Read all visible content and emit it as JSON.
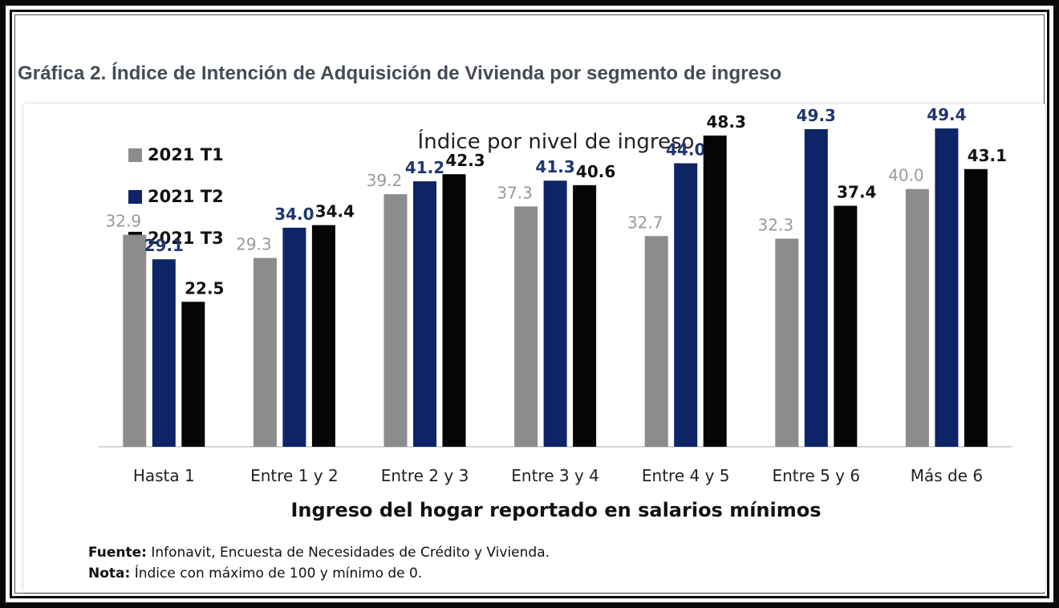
{
  "heading": "Gráfica 2. Índice de Intención de Adquisición de Vivienda por segmento de ingreso",
  "chart_data": {
    "type": "bar",
    "title": "Índice por nivel de ingreso",
    "xlabel": "Ingreso del hogar reportado en salarios mínimos",
    "ylabel": "",
    "ylim": [
      0,
      60
    ],
    "grid": false,
    "legend_position": "top-left",
    "categories": [
      "Hasta 1",
      "Entre 1 y 2",
      "Entre 2 y 3",
      "Entre 3 y 4",
      "Entre 4 y 5",
      "Entre 5 y 6",
      "Más de 6"
    ],
    "series": [
      {
        "name": "2021 T1",
        "color": "#8c8c8c",
        "label_color": "#9a9a9a",
        "values": [
          32.9,
          29.3,
          39.2,
          37.3,
          32.7,
          32.3,
          40.0
        ],
        "labels": [
          "32.9",
          "29.3",
          "39.2",
          "37.3",
          "32.7",
          "32.3",
          "40.0"
        ]
      },
      {
        "name": "2021 T2",
        "color": "#0d2466",
        "label_color": "#1f3770",
        "values": [
          29.1,
          34.0,
          41.2,
          41.3,
          44.0,
          49.3,
          49.4
        ],
        "labels": [
          "29.1",
          "34.0",
          "41.2",
          "41.3",
          "44.0",
          "49.3",
          "49.4"
        ]
      },
      {
        "name": "2021 T3",
        "color": "#050505",
        "label_color": "#111111",
        "values": [
          22.5,
          34.4,
          42.3,
          40.6,
          48.3,
          37.4,
          43.1
        ],
        "labels": [
          "22.5",
          "34.4",
          "42.3",
          "40.6",
          "48.3",
          "37.4",
          "43.1"
        ]
      }
    ]
  },
  "notes": {
    "source_label": "Fuente:",
    "source_text": " Infonavit, Encuesta de Necesidades de Crédito y Vivienda.",
    "note_label": "Nota:",
    "note_text": " Índice con máximo de 100 y mínimo de 0."
  }
}
